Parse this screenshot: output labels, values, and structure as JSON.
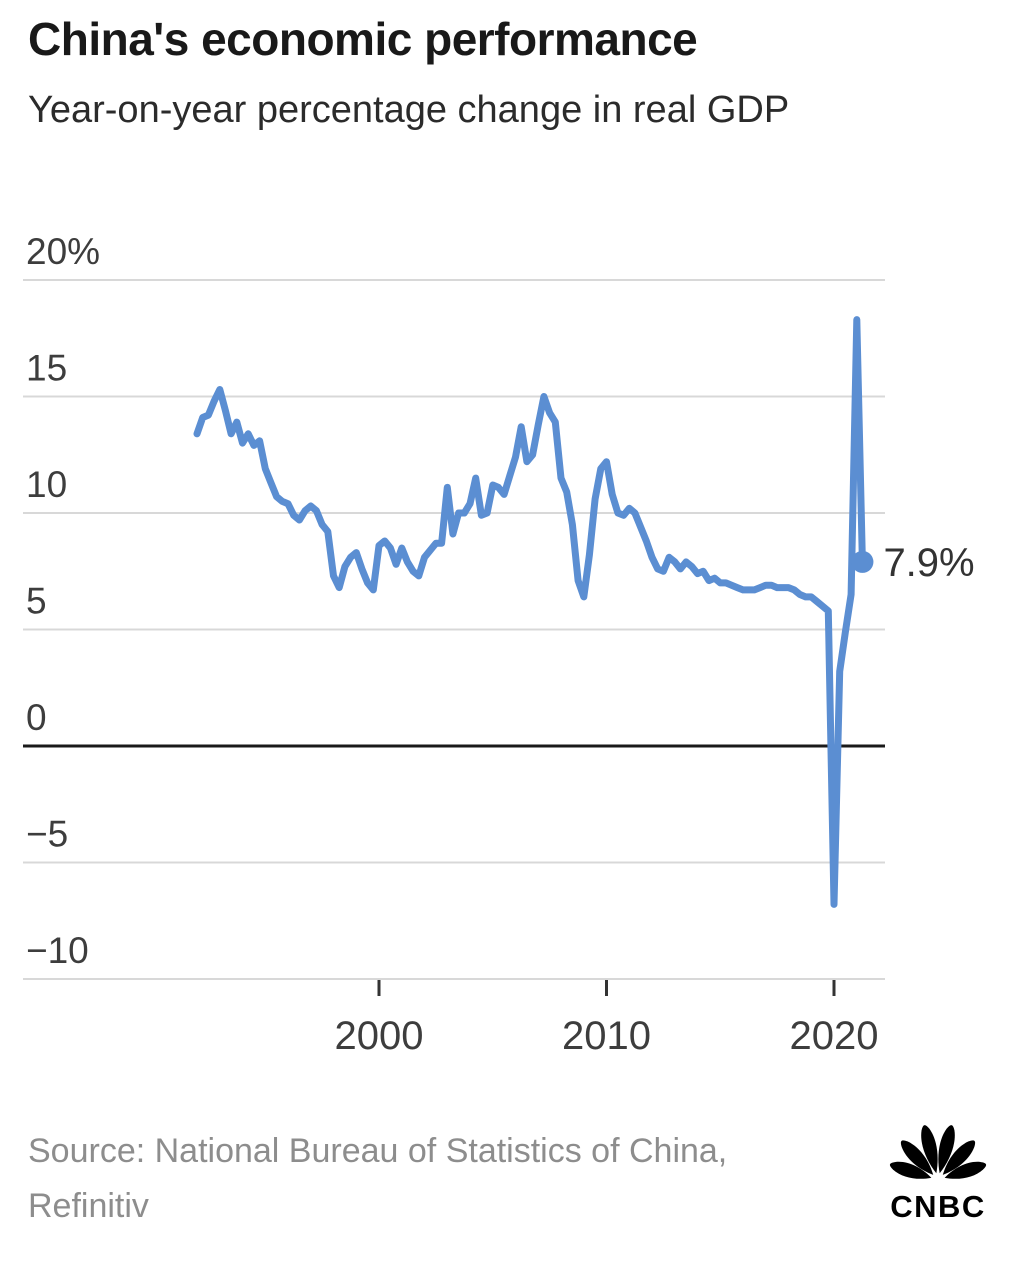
{
  "header": {
    "title": "China's economic performance",
    "subtitle": "Year-on-year percentage change in real GDP"
  },
  "footer": {
    "source_line1": "Source: National Bureau of Statistics of China,",
    "source_line2": "Refinitiv",
    "logo_text": "CNBC",
    "logo_icon": "cnbc-peacock-icon"
  },
  "colors": {
    "line": "#5b8ed2",
    "grid": "#d8d8d8",
    "zero_line": "#1a1a1a",
    "axis_label": "#3d3d3d",
    "tick_mark": "#333333",
    "annotation": "#333333",
    "source_text": "#8d8d8d",
    "title_text": "#191919",
    "logo": "#000000"
  },
  "chart_data": {
    "type": "line",
    "title": "China's economic performance",
    "subtitle": "Year-on-year percentage change in real GDP",
    "unit": "percent",
    "frequency": "quarterly",
    "t0": 1992.0,
    "dt": 0.25,
    "xlim": [
      1990.4,
      2022.5
    ],
    "ylim": [
      -10,
      20
    ],
    "grid": "horizontal-only",
    "yticks": [
      {
        "value": 20,
        "label": "20%"
      },
      {
        "value": 15,
        "label": "15"
      },
      {
        "value": 10,
        "label": "10"
      },
      {
        "value": 5,
        "label": "5"
      },
      {
        "value": 0,
        "label": "0"
      },
      {
        "value": -5,
        "label": "−5"
      },
      {
        "value": -10,
        "label": "−10"
      }
    ],
    "xticks": [
      {
        "value": 2000,
        "label": "2000"
      },
      {
        "value": 2010,
        "label": "2010"
      },
      {
        "value": 2020,
        "label": "2020"
      }
    ],
    "series": [
      {
        "name": "China real GDP, year-on-year % change",
        "values": [
          13.4,
          14.1,
          14.2,
          14.8,
          15.3,
          14.4,
          13.4,
          13.9,
          13.0,
          13.4,
          12.9,
          13.1,
          11.9,
          11.3,
          10.7,
          10.5,
          10.4,
          9.9,
          9.7,
          10.1,
          10.3,
          10.1,
          9.5,
          9.2,
          7.3,
          6.8,
          7.7,
          8.1,
          8.3,
          7.6,
          7.0,
          6.7,
          8.6,
          8.8,
          8.5,
          7.8,
          8.5,
          7.9,
          7.5,
          7.3,
          8.1,
          8.4,
          8.7,
          8.7,
          11.1,
          9.1,
          10.0,
          10.0,
          10.4,
          11.5,
          9.9,
          10.0,
          11.2,
          11.1,
          10.8,
          11.6,
          12.4,
          13.7,
          12.2,
          12.5,
          13.8,
          15.0,
          14.3,
          13.9,
          11.5,
          10.9,
          9.5,
          7.1,
          6.4,
          8.2,
          10.6,
          11.9,
          12.2,
          10.8,
          10.0,
          9.9,
          10.2,
          10.0,
          9.4,
          8.8,
          8.1,
          7.6,
          7.5,
          8.1,
          7.9,
          7.6,
          7.9,
          7.7,
          7.4,
          7.5,
          7.1,
          7.2,
          7.0,
          7.0,
          6.9,
          6.8,
          6.7,
          6.7,
          6.7,
          6.8,
          6.9,
          6.9,
          6.8,
          6.8,
          6.8,
          6.7,
          6.5,
          6.4,
          6.4,
          6.2,
          6.0,
          5.8,
          -6.8,
          3.2,
          4.9,
          6.5,
          18.3,
          7.9
        ]
      }
    ],
    "end_annotation": {
      "label": "7.9%",
      "value": 7.9,
      "period": "2021 Q2"
    },
    "notable_points": {
      "peak_1993_q1": 15.3,
      "peak_2007_q2": 15.0,
      "trough_2009_q1": 6.4,
      "covid_trough_2020_q1": -6.8,
      "rebound_2021_q1": 18.3,
      "latest_2021_q2": 7.9
    }
  }
}
